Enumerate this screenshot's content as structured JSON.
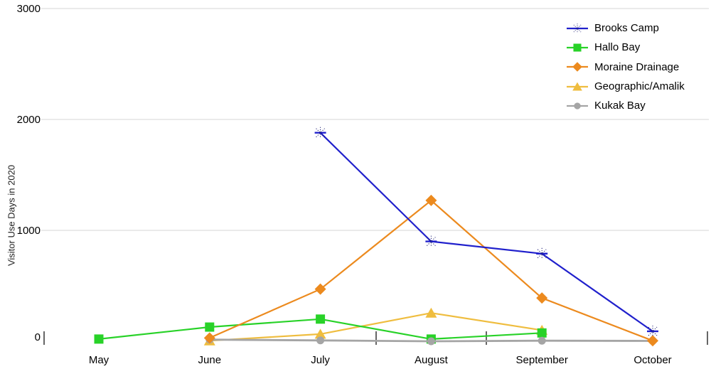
{
  "chart_data": {
    "type": "line",
    "title": "",
    "xlabel": "",
    "ylabel": "Visitor Use Days in 2020",
    "categories": [
      "May",
      "June",
      "July",
      "August",
      "September",
      "October"
    ],
    "ylim": [
      0,
      3000
    ],
    "yticks": [
      0,
      1000,
      2000,
      3000
    ],
    "grid": "horizontal-gridlines-only",
    "legend_position": "top-right",
    "colors": {
      "gridline": "#D6D6D6",
      "tick": "#333333",
      "text": "#000000",
      "background": "#FFFFFF"
    },
    "series": [
      {
        "name": "Brooks Camp",
        "color": "#2020CC",
        "marker": "star",
        "marker_accent": "#14146E",
        "values": [
          null,
          null,
          1880,
          900,
          790,
          90
        ]
      },
      {
        "name": "Hallo Bay",
        "color": "#28D228",
        "marker": "square",
        "values": [
          20,
          128,
          200,
          20,
          75,
          null
        ]
      },
      {
        "name": "Moraine Drainage",
        "color": "#EC8A1E",
        "marker": "diamond",
        "values": [
          null,
          30,
          470,
          1270,
          390,
          5
        ]
      },
      {
        "name": "Geographic/Amalik",
        "color": "#EFBD3F",
        "marker": "triangle",
        "values": [
          null,
          5,
          65,
          255,
          100,
          null
        ]
      },
      {
        "name": "Kukak Bay",
        "color": "#A5A5A5",
        "marker": "circle",
        "values": [
          null,
          15,
          8,
          0,
          5,
          3
        ]
      }
    ]
  }
}
